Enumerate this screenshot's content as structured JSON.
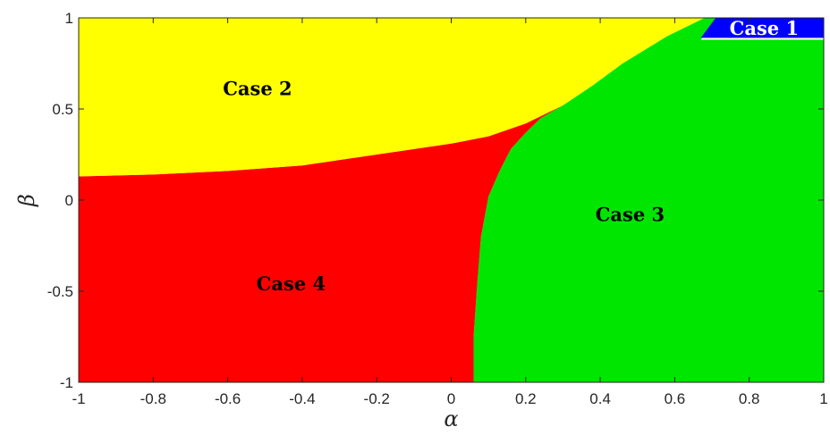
{
  "chart_data": {
    "type": "heatmap",
    "title": "",
    "xlabel": "α",
    "ylabel": "β",
    "xlim": [
      -1,
      1
    ],
    "ylim": [
      -1,
      1
    ],
    "xticks": [
      "-1",
      "-0.8",
      "-0.6",
      "-0.4",
      "-0.2",
      "0",
      "0.2",
      "0.4",
      "0.6",
      "0.8",
      "1"
    ],
    "yticks": [
      "-1",
      "-0.5",
      "0",
      "0.5",
      "1"
    ],
    "grid": false,
    "colors": {
      "case1": "#0000FF",
      "case2": "#FFFF00",
      "case3": "#00E600",
      "case4": "#FF0000"
    },
    "regions": [
      {
        "name": "Case 1",
        "color": "#0000FF",
        "label_pos": [
          0.84,
          0.94
        ],
        "polygon": [
          [
            0.67,
            0.89
          ],
          [
            1.0,
            0.89
          ],
          [
            1.0,
            1.0
          ],
          [
            0.71,
            1.0
          ]
        ]
      },
      {
        "name": "Case 2",
        "color": "#FFFF00",
        "label_pos": [
          -0.52,
          0.61
        ],
        "polygon": [
          [
            -1.0,
            1.0
          ],
          [
            0.68,
            1.0
          ],
          [
            0.58,
            0.9
          ],
          [
            0.46,
            0.75
          ],
          [
            0.38,
            0.63
          ],
          [
            0.3,
            0.52
          ],
          [
            0.2,
            0.42
          ],
          [
            0.1,
            0.35
          ],
          [
            0.0,
            0.31
          ],
          [
            -0.2,
            0.25
          ],
          [
            -0.4,
            0.19
          ],
          [
            -0.6,
            0.16
          ],
          [
            -0.8,
            0.14
          ],
          [
            -1.0,
            0.13
          ]
        ]
      },
      {
        "name": "Case 3",
        "color": "#00E600",
        "label_pos": [
          0.48,
          -0.08
        ],
        "polygon": [
          [
            0.06,
            -1.0
          ],
          [
            1.0,
            -1.0
          ],
          [
            1.0,
            0.88
          ],
          [
            0.67,
            0.88
          ],
          [
            0.71,
            1.0
          ],
          [
            0.68,
            1.0
          ],
          [
            0.58,
            0.9
          ],
          [
            0.46,
            0.75
          ],
          [
            0.38,
            0.63
          ],
          [
            0.3,
            0.52
          ],
          [
            0.24,
            0.45
          ],
          [
            0.2,
            0.37
          ],
          [
            0.16,
            0.28
          ],
          [
            0.13,
            0.16
          ],
          [
            0.1,
            0.02
          ],
          [
            0.08,
            -0.2
          ],
          [
            0.07,
            -0.45
          ],
          [
            0.06,
            -0.75
          ]
        ]
      },
      {
        "name": "Case 4",
        "color": "#FF0000",
        "label_pos": [
          -0.43,
          -0.46
        ],
        "polygon": [
          [
            -1.0,
            -1.0
          ],
          [
            0.06,
            -1.0
          ],
          [
            0.06,
            -0.75
          ],
          [
            0.07,
            -0.45
          ],
          [
            0.08,
            -0.2
          ],
          [
            0.1,
            0.02
          ],
          [
            0.13,
            0.16
          ],
          [
            0.16,
            0.28
          ],
          [
            0.2,
            0.37
          ],
          [
            0.24,
            0.45
          ],
          [
            0.3,
            0.52
          ],
          [
            0.2,
            0.42
          ],
          [
            0.1,
            0.35
          ],
          [
            0.0,
            0.31
          ],
          [
            -0.2,
            0.25
          ],
          [
            -0.4,
            0.19
          ],
          [
            -0.6,
            0.16
          ],
          [
            -0.8,
            0.14
          ],
          [
            -1.0,
            0.13
          ]
        ]
      }
    ]
  }
}
